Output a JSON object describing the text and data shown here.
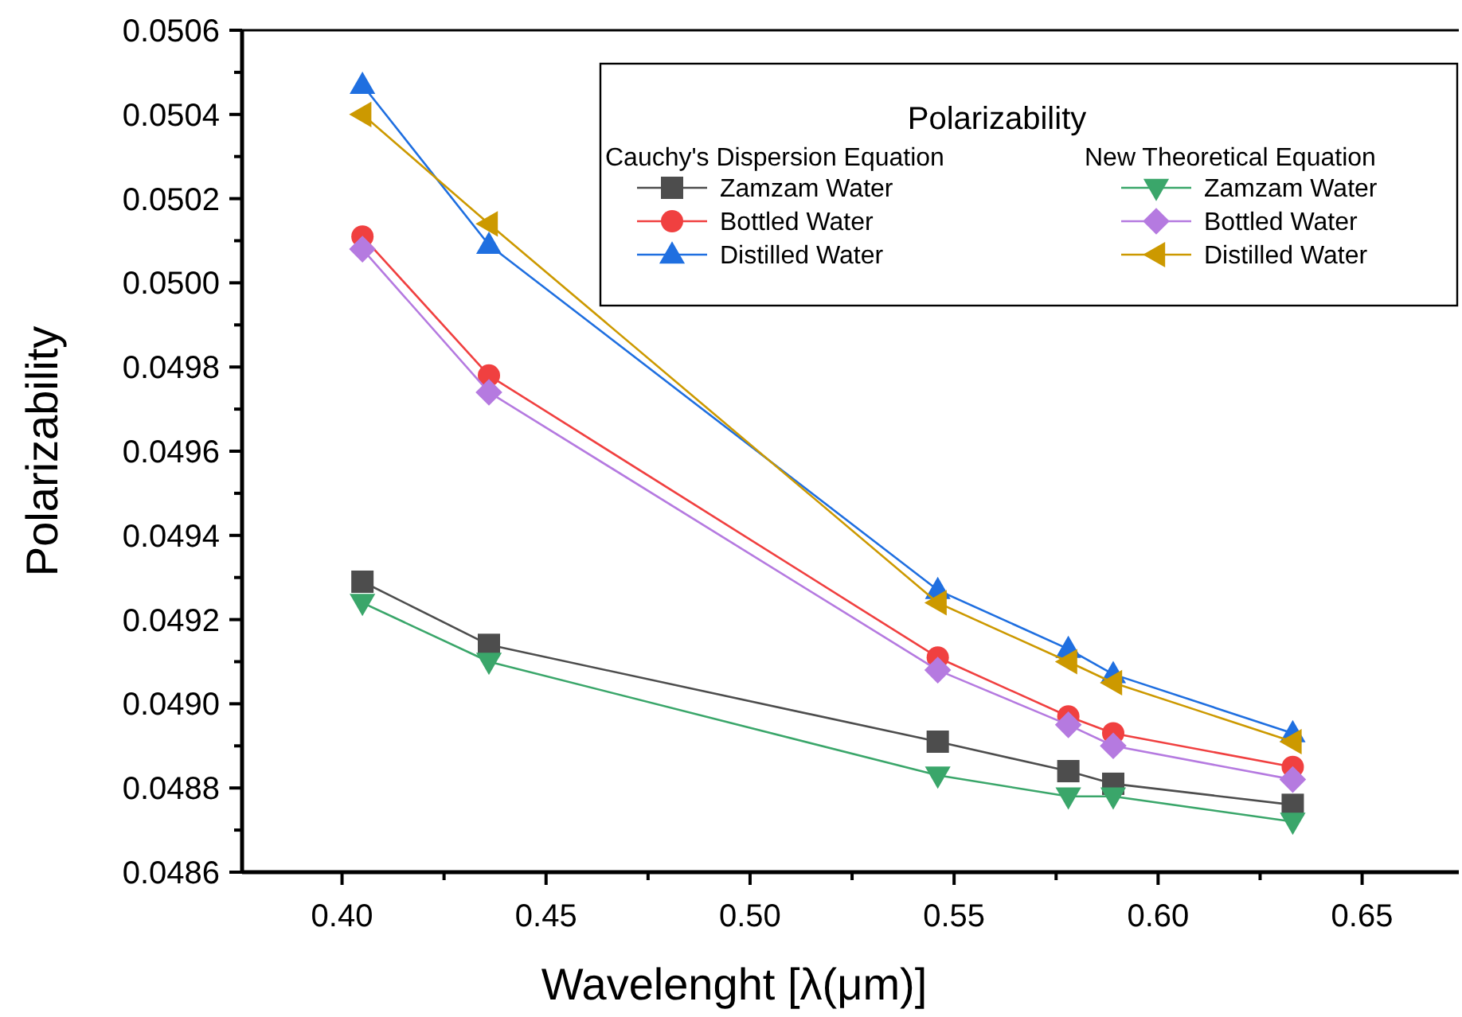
{
  "chart_data": {
    "type": "line",
    "xlabel": "Wavelenght [λ(μm)]",
    "ylabel": "Polarizability",
    "legend_title": "Polarizability",
    "annotations": [
      "Cauchy's Dispersion Equation",
      "New Theoretical Equation"
    ],
    "x": [
      0.405,
      0.436,
      0.546,
      0.578,
      0.589,
      0.633
    ],
    "xlim": [
      0.3755,
      0.6737
    ],
    "ylim": [
      0.0486,
      0.0506
    ],
    "xticks": [
      {
        "value": 0.4,
        "label": "0.40"
      },
      {
        "value": 0.425,
        "label": null
      },
      {
        "value": 0.45,
        "label": "0.45"
      },
      {
        "value": 0.475,
        "label": null
      },
      {
        "value": 0.5,
        "label": "0.50"
      },
      {
        "value": 0.525,
        "label": null
      },
      {
        "value": 0.55,
        "label": "0.55"
      },
      {
        "value": 0.575,
        "label": null
      },
      {
        "value": 0.6,
        "label": "0.60"
      },
      {
        "value": 0.625,
        "label": null
      },
      {
        "value": 0.65,
        "label": "0.65"
      }
    ],
    "yticks": [
      0.0486,
      {
        "value": 0.0487,
        "label": null
      },
      0.0488,
      {
        "value": 0.0489,
        "label": null
      },
      {
        "value": 0.049,
        "label": "0.0490"
      },
      {
        "value": 0.0491,
        "label": null
      },
      0.0492,
      {
        "value": 0.0493,
        "label": null
      },
      0.0494,
      {
        "value": 0.0495,
        "label": null
      },
      0.0496,
      {
        "value": 0.0497,
        "label": null
      },
      0.0498,
      {
        "value": 0.0499,
        "label": null
      },
      {
        "value": 0.05,
        "label": "0.0500"
      },
      {
        "value": 0.0501,
        "label": null
      },
      0.0502,
      {
        "value": 0.0503,
        "label": null
      },
      0.0504,
      {
        "value": 0.0505,
        "label": null
      },
      0.0506
    ],
    "grid": false,
    "legend": "top right",
    "line_style": "solid",
    "series": [
      {
        "name": "Zamzam Water",
        "color": "#4d4d4d",
        "marker": "square",
        "values": [
          0.04929,
          0.04914,
          0.04891,
          0.04884,
          0.04881,
          0.04876
        ]
      },
      {
        "name": "Bottled Water",
        "color": "#f04040",
        "marker": "circle",
        "values": [
          0.05011,
          0.04978,
          0.04911,
          0.04897,
          0.04893,
          0.04885
        ]
      },
      {
        "name": "Distilled Water",
        "color": "#1f6fe0",
        "marker": "triangle",
        "values": [
          0.05047,
          0.05009,
          0.04927,
          0.04913,
          0.04907,
          0.04893
        ]
      },
      {
        "name": "Zamzam Water",
        "color": "#3aa66a",
        "marker": "triangle-down",
        "values": [
          0.04924,
          0.0491,
          0.04883,
          0.04878,
          0.04878,
          0.04872
        ]
      },
      {
        "name": "Bottled Water",
        "color": "#b57ae0",
        "marker": "diamond",
        "values": [
          0.05008,
          0.04974,
          0.04908,
          0.04895,
          0.0489,
          0.04882
        ]
      },
      {
        "name": "Distilled Water",
        "color": "#cc9900",
        "marker": "triangle-left",
        "values": [
          0.0504,
          0.05014,
          0.04924,
          0.0491,
          0.04905,
          0.04891
        ]
      }
    ]
  }
}
